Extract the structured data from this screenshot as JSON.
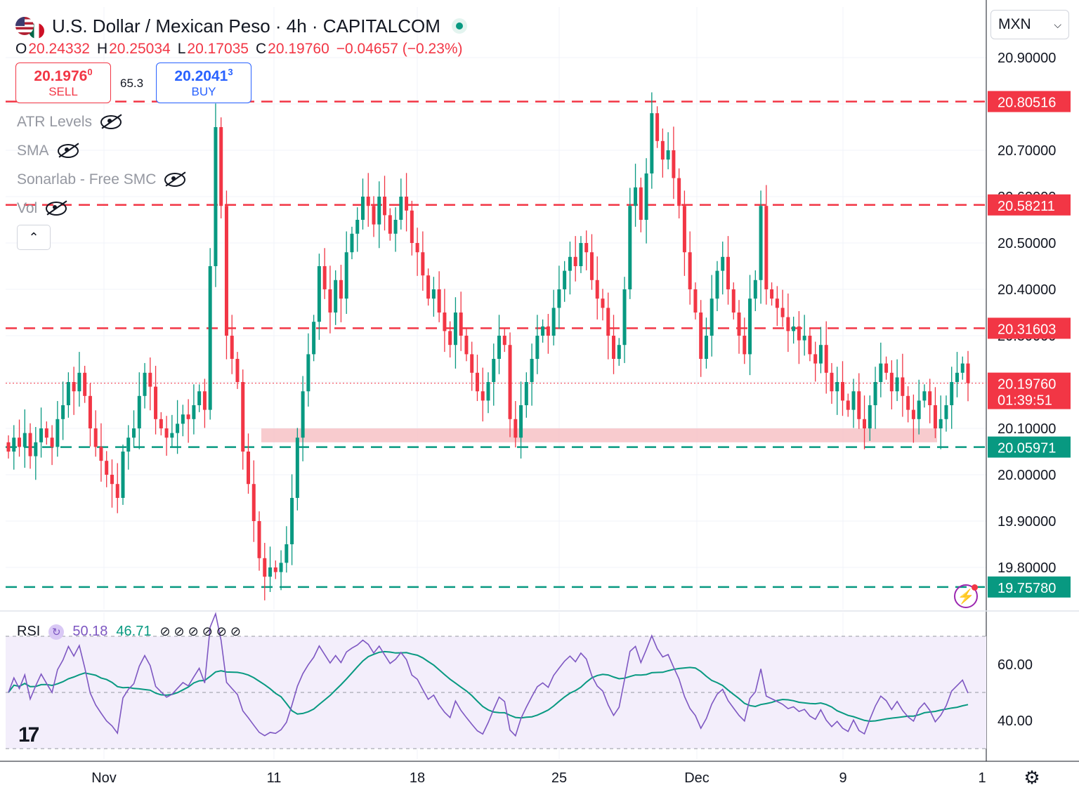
{
  "header": {
    "title": "U.S. Dollar / Mexican Peso · 4h · CAPITALCOM",
    "ohlc": [
      {
        "k": "O",
        "v": "20.24332"
      },
      {
        "k": "H",
        "v": "20.25034"
      },
      {
        "k": "L",
        "v": "20.17035"
      },
      {
        "k": "C",
        "v": "20.19760"
      }
    ],
    "change": "−0.04657 (−0.23%)"
  },
  "trade": {
    "sell_price": "20.1976",
    "sell_sup": "0",
    "sell_label": "SELL",
    "spread": "65.3",
    "buy_price": "20.2041",
    "buy_sup": "3",
    "buy_label": "BUY"
  },
  "indicators": [
    "ATR Levels",
    "SMA",
    "Sonarlab - Free SMC",
    "Vol"
  ],
  "currency_select": "MXN",
  "rsi_legend": {
    "label": "RSI",
    "value1": "50.18",
    "value2": "46.71"
  },
  "colors": {
    "up": "#089981",
    "down": "#f23645",
    "rsi": "#7e57c2",
    "rsi_ma": "#089981",
    "zone": "#f7c2c6"
  },
  "chart_data": {
    "type": "candlestick",
    "symbol": "USD/MXN",
    "timeframe": "4h",
    "ylim": [
      19.7,
      20.95
    ],
    "y_ticks": [
      "20.90000",
      "20.70000",
      "20.60000",
      "20.50000",
      "20.40000",
      "20.30000",
      "20.10000",
      "20.00000",
      "19.90000",
      "19.80000"
    ],
    "x_ticks": [
      "Nov",
      "11",
      "18",
      "25",
      "Dec",
      "9",
      "1"
    ],
    "current_price": {
      "value": 20.1976,
      "label": "20.19760",
      "countdown": "01:39:51"
    },
    "levels": [
      {
        "value": 20.80516,
        "label": "20.80516",
        "color": "#f23645"
      },
      {
        "value": 20.58211,
        "label": "20.58211",
        "color": "#f23645"
      },
      {
        "value": 20.31603,
        "label": "20.31603",
        "color": "#f23645"
      },
      {
        "value": 20.05971,
        "label": "20.05971",
        "color": "#089981"
      },
      {
        "value": 19.7578,
        "label": "19.75780",
        "color": "#089981"
      }
    ],
    "zone": {
      "from": 20.07,
      "to": 20.1,
      "x_from": "Nov 10",
      "x_to": "Dec 13"
    },
    "closes": [
      20.05,
      20.08,
      20.06,
      20.09,
      20.04,
      20.07,
      20.1,
      20.08,
      20.06,
      20.12,
      20.15,
      20.2,
      20.18,
      20.22,
      20.17,
      20.1,
      20.06,
      20.03,
      20.0,
      19.98,
      19.95,
      20.05,
      20.08,
      20.1,
      20.17,
      20.22,
      20.19,
      20.12,
      20.1,
      20.08,
      20.09,
      20.11,
      20.13,
      20.12,
      20.15,
      20.18,
      20.14,
      20.45,
      20.75,
      20.58,
      20.3,
      20.25,
      20.2,
      20.05,
      19.98,
      19.9,
      19.82,
      19.78,
      19.8,
      19.79,
      19.81,
      19.85,
      19.95,
      20.08,
      20.18,
      20.26,
      20.33,
      20.45,
      20.4,
      20.35,
      20.42,
      20.38,
      20.48,
      20.52,
      20.55,
      20.6,
      20.58,
      20.54,
      20.6,
      20.56,
      20.52,
      20.55,
      20.6,
      20.57,
      20.5,
      20.48,
      20.43,
      20.38,
      20.4,
      20.35,
      20.31,
      20.28,
      20.35,
      20.3,
      20.26,
      20.22,
      20.18,
      20.16,
      20.2,
      20.25,
      20.3,
      20.28,
      20.12,
      20.08,
      20.15,
      20.2,
      20.25,
      20.3,
      20.32,
      20.3,
      20.36,
      20.4,
      20.44,
      20.47,
      20.45,
      20.5,
      20.48,
      20.42,
      20.38,
      20.36,
      20.3,
      20.25,
      20.28,
      20.4,
      20.58,
      20.62,
      20.55,
      20.65,
      20.78,
      20.72,
      20.68,
      20.7,
      20.64,
      20.58,
      20.48,
      20.4,
      20.35,
      20.25,
      20.3,
      20.38,
      20.44,
      20.47,
      20.4,
      20.35,
      20.3,
      20.26,
      20.38,
      20.42,
      20.58,
      20.4,
      20.38,
      20.36,
      20.34,
      20.31,
      20.32,
      20.29,
      20.3,
      20.26,
      20.24,
      20.28,
      20.22,
      20.18,
      20.2,
      20.16,
      20.14,
      20.18,
      20.12,
      20.1,
      20.15,
      20.2,
      20.24,
      20.22,
      20.18,
      20.21,
      20.17,
      20.14,
      20.12,
      20.16,
      20.18,
      20.15,
      20.1,
      20.12,
      20.15,
      20.2,
      20.22,
      20.24,
      20.1976
    ],
    "rsi_ticks": [
      "60.00",
      "40.00"
    ],
    "rsi_levels": [
      70,
      50,
      30
    ],
    "rsi_ylim": [
      25,
      75
    ]
  }
}
